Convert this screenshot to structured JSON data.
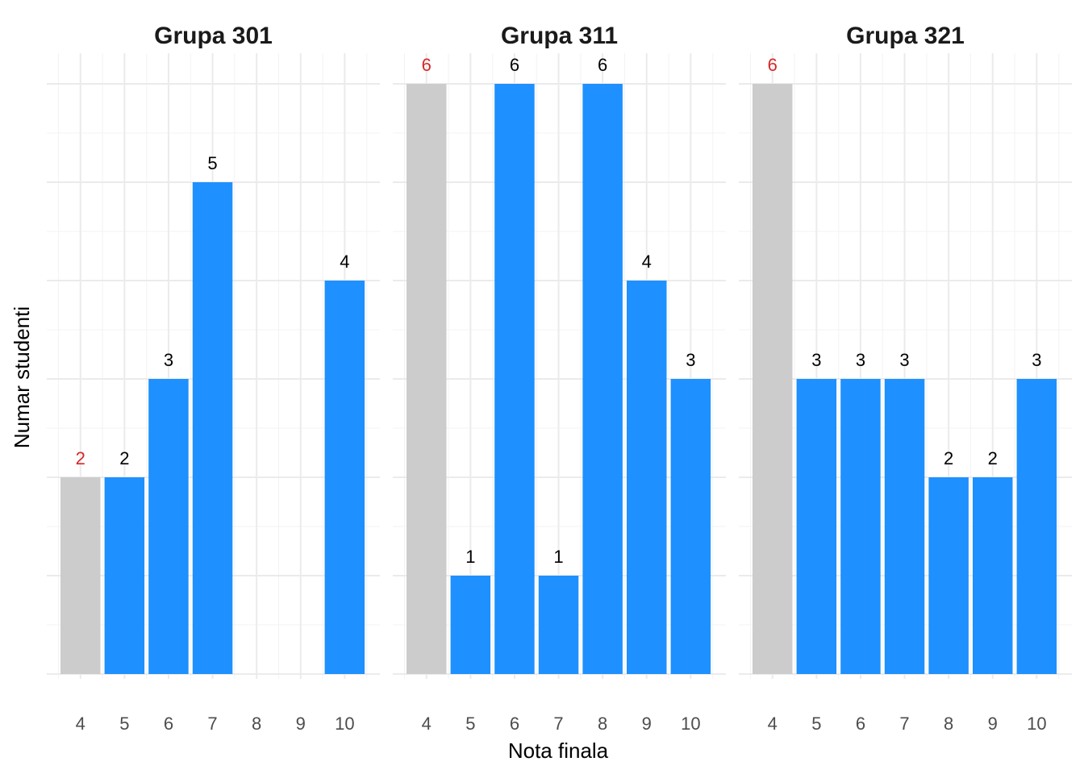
{
  "chart_data": {
    "type": "bar",
    "layout": "facets",
    "xlabel": "Nota finala",
    "ylabel": "Numar studenti",
    "categories": [
      "4",
      "5",
      "6",
      "7",
      "8",
      "9",
      "10"
    ],
    "ylim": [
      0,
      6
    ],
    "grid": true,
    "colors": {
      "fail": "#cccccc",
      "pass": "#1e90ff",
      "fail_label": "#d62728",
      "pass_label": "#000000"
    },
    "facets": [
      {
        "title": "Grupa 301",
        "values": [
          2,
          2,
          3,
          5,
          0,
          0,
          4
        ]
      },
      {
        "title": "Grupa 311",
        "values": [
          6,
          1,
          6,
          1,
          6,
          4,
          3
        ]
      },
      {
        "title": "Grupa 321",
        "values": [
          6,
          3,
          3,
          3,
          2,
          2,
          3
        ]
      }
    ]
  }
}
